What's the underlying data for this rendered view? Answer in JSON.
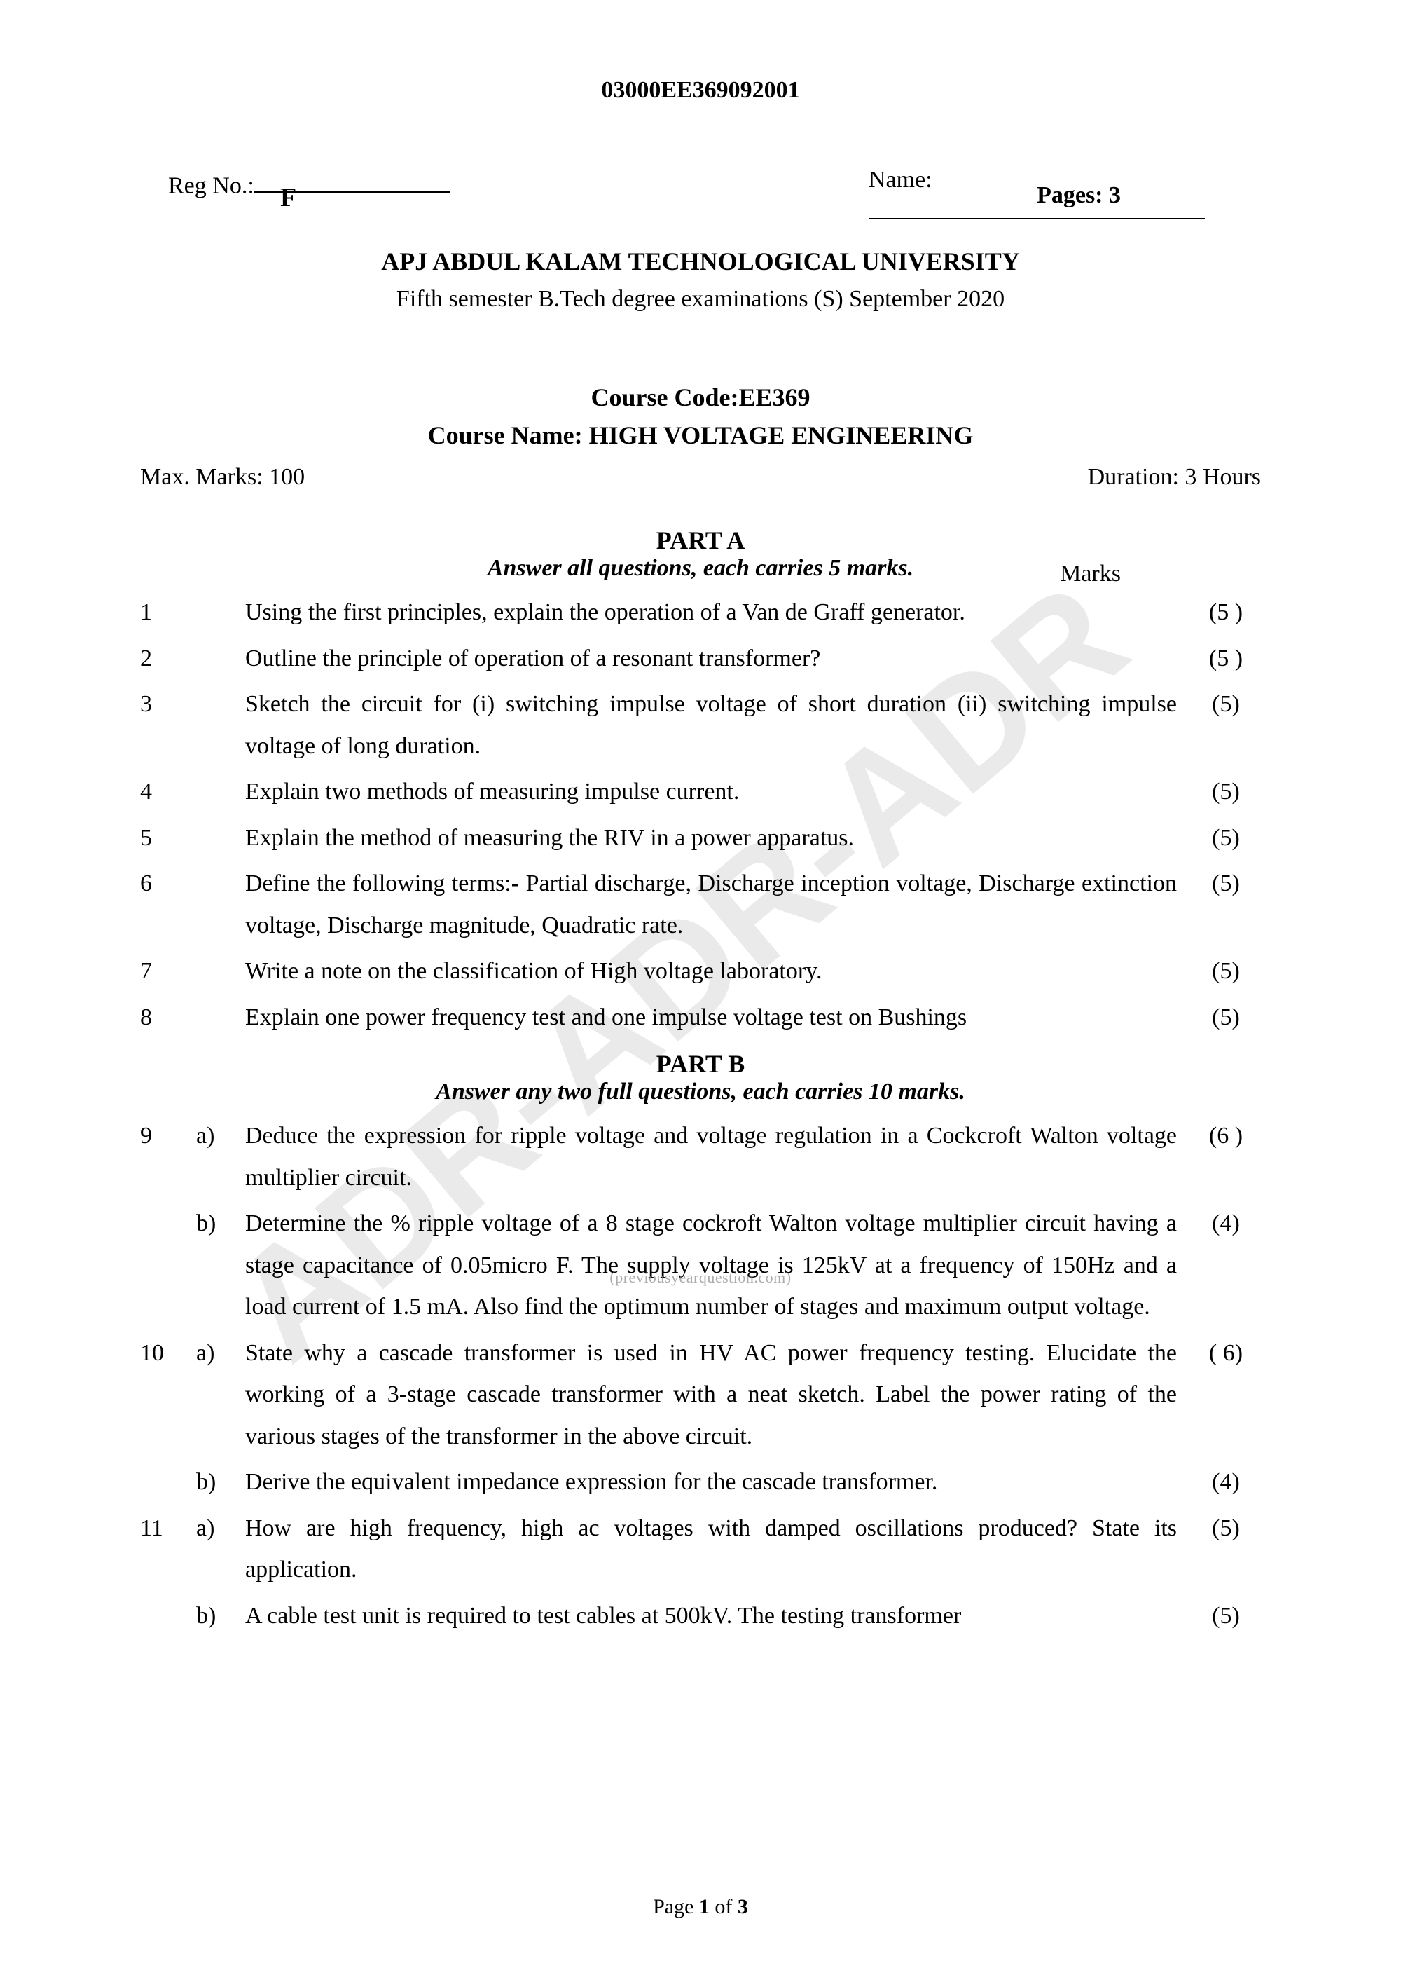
{
  "header": {
    "code": "03000EE369092001",
    "letter": "F",
    "pages": "Pages: 3"
  },
  "fields": {
    "reg_label": "Reg No.:",
    "name_label": "Name:"
  },
  "university": "APJ ABDUL KALAM TECHNOLOGICAL UNIVERSITY",
  "exam_line": "Fifth semester B.Tech degree examinations (S) September 2020",
  "course_code": "Course Code:EE369",
  "course_name": "Course Name: HIGH VOLTAGE ENGINEERING",
  "max_marks": "Max. Marks: 100",
  "duration": "Duration: 3 Hours",
  "partA": {
    "title": "PART A",
    "subtitle": "Answer all questions, each carries 5 marks.",
    "marks_label": "Marks",
    "questions": [
      {
        "num": "1",
        "sub": "",
        "text": "Using the first principles, explain the operation of a Van de Graff generator.",
        "marks": "(5 )"
      },
      {
        "num": "2",
        "sub": "",
        "text": "Outline the principle of operation of a resonant transformer?",
        "marks": "(5 )"
      },
      {
        "num": "3",
        "sub": "",
        "text": "Sketch the circuit for (i) switching impulse voltage of short duration (ii) switching impulse voltage of long duration.",
        "marks": "(5)"
      },
      {
        "num": "4",
        "sub": "",
        "text": "Explain two methods of measuring impulse current.",
        "marks": "(5)"
      },
      {
        "num": "5",
        "sub": "",
        "text": "Explain the method of measuring the RIV in a power apparatus.",
        "marks": "(5)"
      },
      {
        "num": "6",
        "sub": "",
        "text": "Define the following terms:- Partial discharge, Discharge inception voltage, Discharge extinction voltage, Discharge magnitude, Quadratic rate.",
        "marks": "(5)"
      },
      {
        "num": "7",
        "sub": "",
        "text": "Write a note on the classification of High voltage laboratory.",
        "marks": "(5)"
      },
      {
        "num": "8",
        "sub": "",
        "text": "Explain one power frequency test and one impulse voltage test on Bushings",
        "marks": "(5)"
      }
    ]
  },
  "partB": {
    "title": "PART B",
    "subtitle": "Answer any two full questions, each carries 10 marks.",
    "questions": [
      {
        "num": "9",
        "sub": "a)",
        "text": "Deduce the expression for ripple voltage and voltage regulation in a Cockcroft Walton voltage multiplier circuit.",
        "marks": "(6 )"
      },
      {
        "num": "",
        "sub": "b)",
        "text": "Determine the % ripple voltage of a 8 stage cockroft Walton voltage multiplier circuit having a stage capacitance of 0.05micro F. The supply voltage is 125kV at a frequency of 150Hz and a load current of 1.5 mA. Also find the optimum number of stages and maximum output voltage.",
        "marks": "(4)"
      },
      {
        "num": "10",
        "sub": "a)",
        "text": "State why a cascade transformer is used in HV AC power frequency testing. Elucidate the working of a 3-stage cascade transformer with a neat sketch.  Label the power rating of the various stages of the transformer in the above circuit.",
        "marks": "( 6)"
      },
      {
        "num": "",
        "sub": "b)",
        "text": "Derive the equivalent impedance expression for the cascade transformer.",
        "marks": "(4)"
      },
      {
        "num": "11",
        "sub": "a)",
        "text": "How are high frequency, high ac voltages with damped oscillations produced? State its application.",
        "marks": "(5)"
      },
      {
        "num": "",
        "sub": "b)",
        "text": "A cable test unit is required to test cables at 500kV. The testing transformer",
        "marks": "(5)"
      }
    ]
  },
  "footer": {
    "page_label": "Page ",
    "page_num": "1",
    "page_of": " of ",
    "page_total": "3"
  },
  "watermark_small": "(previousyearquestion.com)"
}
